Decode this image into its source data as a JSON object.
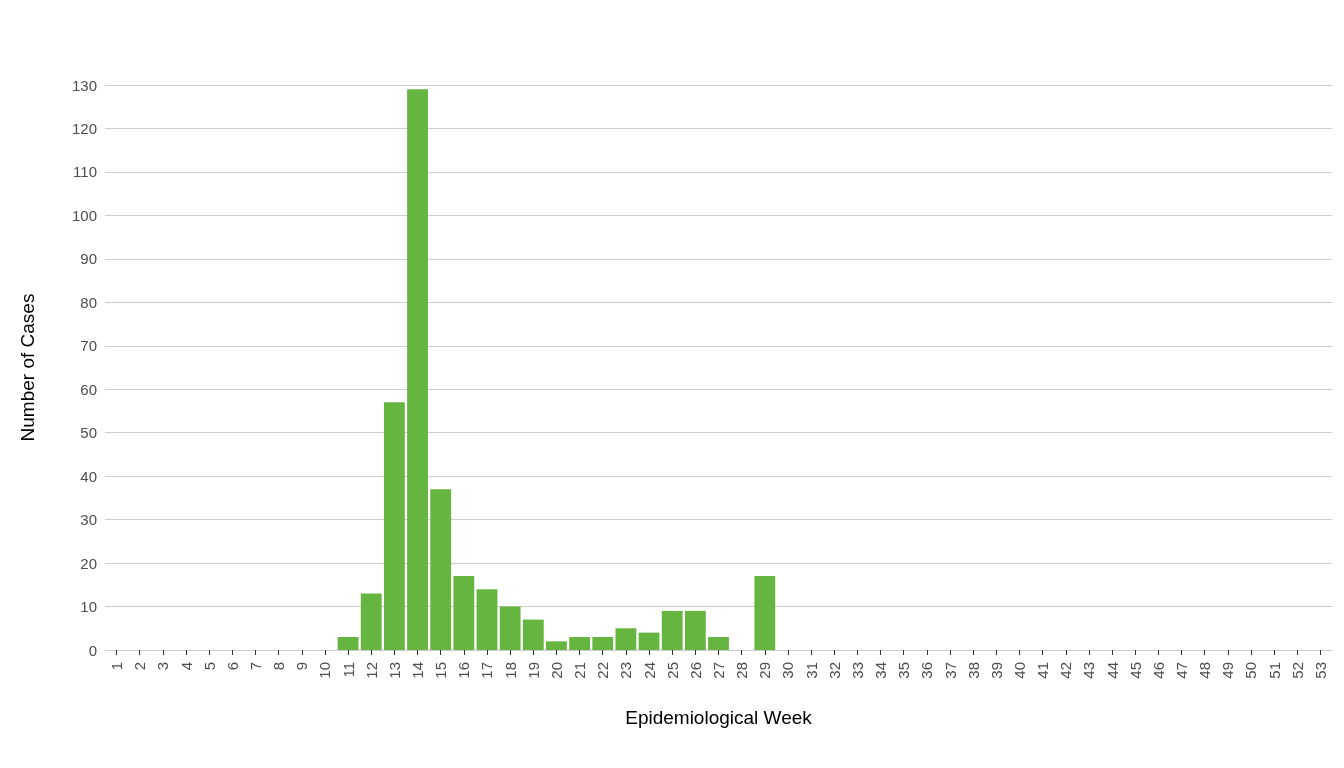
{
  "chart_data": {
    "type": "bar",
    "xlabel": "Epidemiological Week",
    "ylabel": "Number of Cases",
    "categories": [
      "1",
      "2",
      "3",
      "4",
      "5",
      "6",
      "7",
      "8",
      "9",
      "10",
      "11",
      "12",
      "13",
      "14",
      "15",
      "16",
      "17",
      "18",
      "19",
      "20",
      "21",
      "22",
      "23",
      "24",
      "25",
      "26",
      "27",
      "28",
      "29",
      "30",
      "31",
      "32",
      "33",
      "34",
      "35",
      "36",
      "37",
      "38",
      "39",
      "40",
      "41",
      "42",
      "43",
      "44",
      "45",
      "46",
      "47",
      "48",
      "49",
      "50",
      "51",
      "52",
      "53"
    ],
    "values": [
      0,
      0,
      0,
      0,
      0,
      0,
      0,
      0,
      0,
      0,
      3,
      13,
      57,
      129,
      37,
      17,
      14,
      10,
      7,
      2,
      3,
      3,
      5,
      4,
      9,
      9,
      3,
      0,
      17,
      0,
      0,
      0,
      0,
      0,
      0,
      0,
      0,
      0,
      0,
      0,
      0,
      0,
      0,
      0,
      0,
      0,
      0,
      0,
      0,
      0,
      0,
      0,
      0
    ],
    "color": "#67b541",
    "ylim": [
      0,
      130
    ],
    "yticks": [
      0,
      10,
      20,
      30,
      40,
      50,
      60,
      70,
      80,
      90,
      100,
      110,
      120,
      130
    ],
    "grid": "y"
  }
}
